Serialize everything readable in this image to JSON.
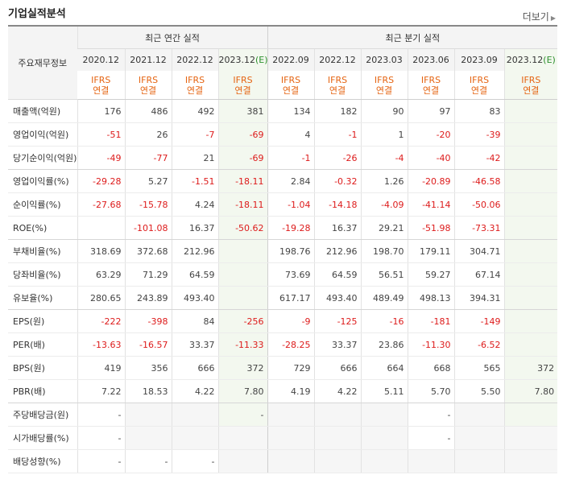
{
  "title": "기업실적분석",
  "more_link": "더보기",
  "header": {
    "row_label": "주요재무정보",
    "annual_group": "최근 연간 실적",
    "quarter_group": "최근 분기 실적",
    "ifrs_top": "IFRS",
    "ifrs_bottom": "연결",
    "annual_periods": [
      {
        "base": "2020.12",
        "est": ""
      },
      {
        "base": "2021.12",
        "est": ""
      },
      {
        "base": "2022.12",
        "est": ""
      },
      {
        "base": "2023.12",
        "est": "(E)"
      }
    ],
    "quarter_periods": [
      {
        "base": "2022.09",
        "est": ""
      },
      {
        "base": "2022.12",
        "est": ""
      },
      {
        "base": "2023.03",
        "est": ""
      },
      {
        "base": "2023.06",
        "est": ""
      },
      {
        "base": "2023.09",
        "est": ""
      },
      {
        "base": "2023.12",
        "est": "(E)"
      }
    ]
  },
  "rows": [
    {
      "label": "매출액(억원)",
      "values": [
        "176",
        "486",
        "492",
        "381",
        "134",
        "182",
        "90",
        "97",
        "83",
        ""
      ]
    },
    {
      "label": "영업이익(억원)",
      "values": [
        "-51",
        "26",
        "-7",
        "-69",
        "4",
        "-1",
        "1",
        "-20",
        "-39",
        ""
      ]
    },
    {
      "label": "당기순이익(억원)",
      "values": [
        "-49",
        "-77",
        "21",
        "-69",
        "-1",
        "-26",
        "-4",
        "-40",
        "-42",
        ""
      ]
    },
    {
      "label": "영업이익률(%)",
      "values": [
        "-29.28",
        "5.27",
        "-1.51",
        "-18.11",
        "2.84",
        "-0.32",
        "1.26",
        "-20.89",
        "-46.58",
        ""
      ]
    },
    {
      "label": "순이익률(%)",
      "values": [
        "-27.68",
        "-15.78",
        "4.24",
        "-18.11",
        "-1.04",
        "-14.18",
        "-4.09",
        "-41.14",
        "-50.06",
        ""
      ]
    },
    {
      "label": "ROE(%)",
      "values": [
        "",
        "-101.08",
        "16.37",
        "-50.62",
        "-19.28",
        "16.37",
        "29.21",
        "-51.98",
        "-73.31",
        ""
      ]
    },
    {
      "label": "부채비율(%)",
      "values": [
        "318.69",
        "372.68",
        "212.96",
        "",
        "198.76",
        "212.96",
        "198.70",
        "179.11",
        "304.71",
        ""
      ]
    },
    {
      "label": "당좌비율(%)",
      "values": [
        "63.29",
        "71.29",
        "64.59",
        "",
        "73.69",
        "64.59",
        "56.51",
        "59.27",
        "67.14",
        ""
      ]
    },
    {
      "label": "유보율(%)",
      "values": [
        "280.65",
        "243.89",
        "493.40",
        "",
        "617.17",
        "493.40",
        "489.49",
        "498.13",
        "394.31",
        ""
      ]
    },
    {
      "label": "EPS(원)",
      "values": [
        "-222",
        "-398",
        "84",
        "-256",
        "-9",
        "-125",
        "-16",
        "-181",
        "-149",
        ""
      ]
    },
    {
      "label": "PER(배)",
      "values": [
        "-13.63",
        "-16.57",
        "33.37",
        "-11.33",
        "-28.25",
        "33.37",
        "23.86",
        "-11.30",
        "-6.52",
        ""
      ]
    },
    {
      "label": "BPS(원)",
      "values": [
        "419",
        "356",
        "666",
        "372",
        "729",
        "666",
        "664",
        "668",
        "565",
        "372"
      ]
    },
    {
      "label": "PBR(배)",
      "values": [
        "7.22",
        "18.53",
        "4.22",
        "7.80",
        "4.19",
        "4.22",
        "5.11",
        "5.70",
        "5.50",
        "7.80"
      ]
    },
    {
      "label": "주당배당금(원)",
      "values": [
        "-",
        "",
        "",
        "-",
        "",
        "",
        "",
        "-",
        "",
        ""
      ]
    },
    {
      "label": "시가배당률(%)",
      "values": [
        "-",
        "",
        "",
        "",
        "",
        "",
        "",
        "-",
        "",
        ""
      ]
    },
    {
      "label": "배당성향(%)",
      "values": [
        "-",
        "-",
        "-",
        "",
        "",
        "",
        "",
        "",
        "",
        ""
      ]
    }
  ]
}
